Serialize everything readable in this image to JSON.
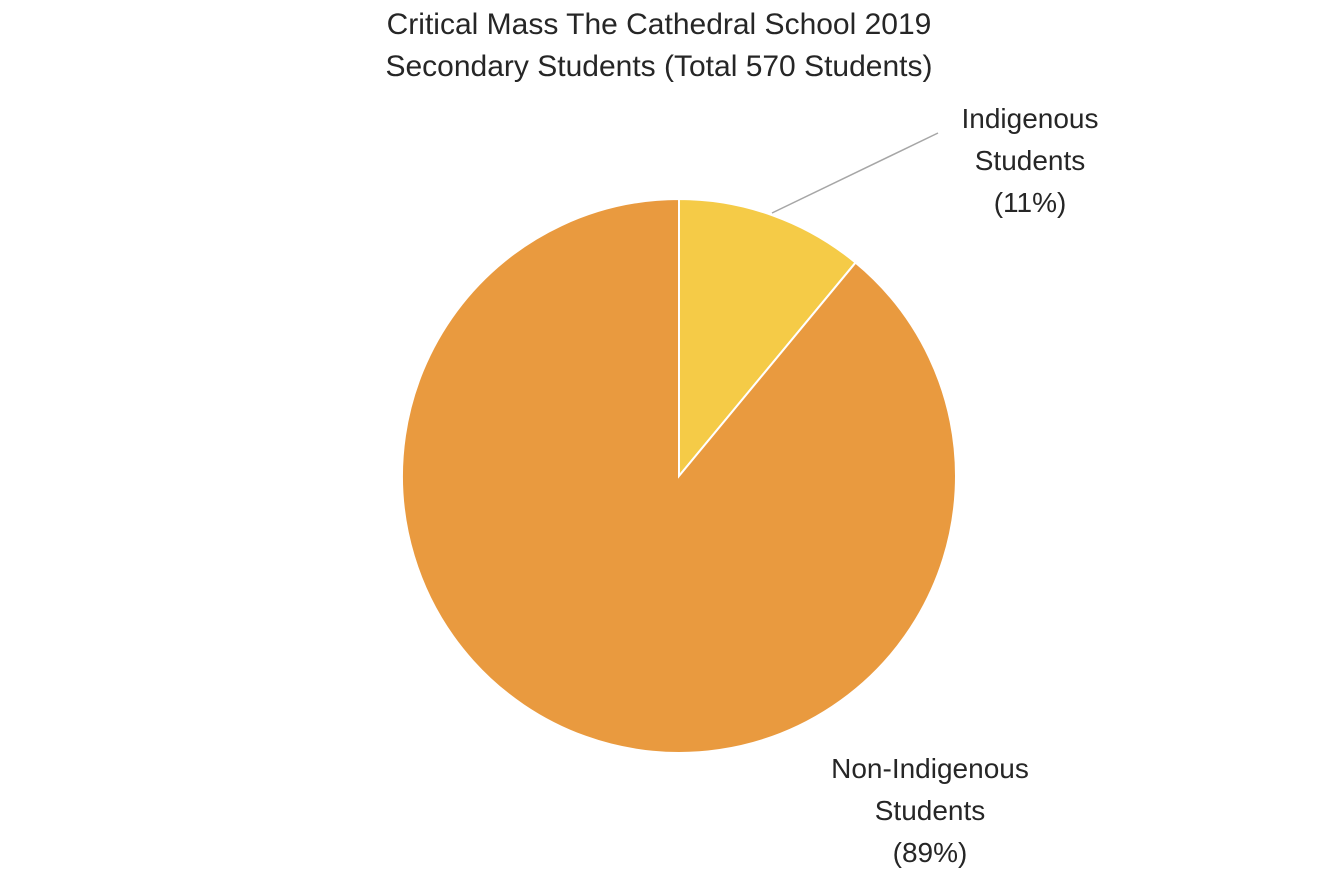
{
  "chart_data": {
    "type": "pie",
    "title": [
      "Critical Mass The Cathedral School 2019",
      "Secondary Students (Total 570 Students)"
    ],
    "categories": [
      "Indigenous Students",
      "Non-Indigenous Students"
    ],
    "values": [
      11,
      89
    ],
    "value_unit": "%",
    "colors": [
      "#F5CB47",
      "#E99A3F"
    ],
    "data_labels": [
      {
        "lines": [
          "Indigenous",
          "Students",
          "(11%)"
        ]
      },
      {
        "lines": [
          "Non-Indigenous",
          "Students",
          "(89%)"
        ]
      }
    ],
    "legend": "none",
    "start_angle": "12 o'clock, clockwise"
  }
}
